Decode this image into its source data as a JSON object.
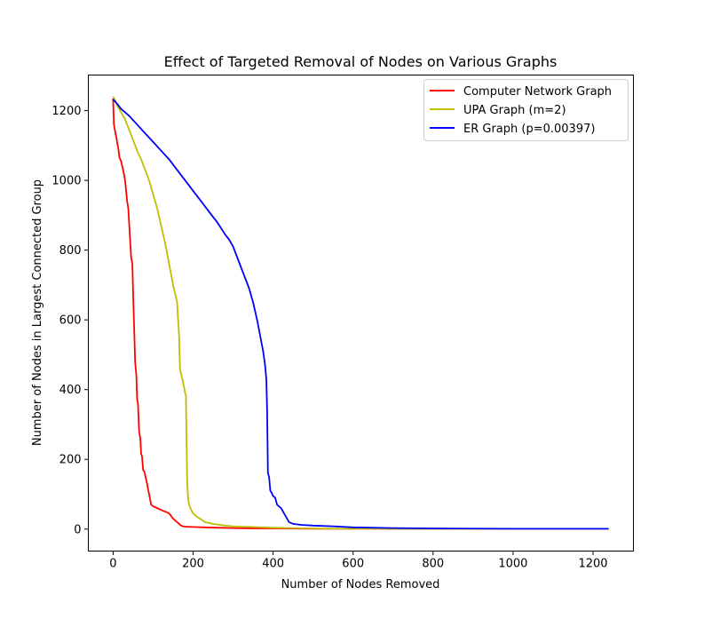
{
  "chart_data": {
    "type": "line",
    "title": "Effect of Targeted Removal of Nodes on Various Graphs",
    "xlabel": "Number of Nodes Removed",
    "ylabel": "Number of Nodes in Largest Connected Group",
    "xlim": [
      -62,
      1301
    ],
    "ylim": [
      -63,
      1302
    ],
    "xticks": [
      0,
      200,
      400,
      600,
      800,
      1000,
      1200
    ],
    "yticks": [
      0,
      200,
      400,
      600,
      800,
      1000,
      1200
    ],
    "xtick_labels": [
      "0",
      "200",
      "400",
      "600",
      "800",
      "1000",
      "1200"
    ],
    "ytick_labels": [
      "0",
      "200",
      "400",
      "600",
      "800",
      "1000",
      "1200"
    ],
    "grid": false,
    "legend_position": "top-right",
    "series": [
      {
        "name": "Computer Network Graph",
        "color": "#ff0000",
        "x": [
          0,
          2,
          5,
          8,
          10,
          13,
          16,
          20,
          25,
          30,
          35,
          38,
          40,
          43,
          45,
          48,
          50,
          53,
          55,
          56,
          58,
          60,
          62,
          65,
          68,
          70,
          72,
          75,
          78,
          80,
          85,
          88,
          90,
          95,
          100,
          105,
          110,
          120,
          130,
          140,
          150,
          160,
          170,
          175,
          180,
          200,
          230,
          260,
          300,
          350,
          400,
          500,
          600,
          800,
          1000,
          1239
        ],
        "y": [
          1235,
          1160,
          1140,
          1125,
          1110,
          1090,
          1065,
          1055,
          1030,
          1000,
          940,
          920,
          880,
          820,
          780,
          760,
          670,
          560,
          480,
          465,
          440,
          370,
          360,
          280,
          260,
          215,
          210,
          170,
          165,
          155,
          130,
          110,
          100,
          70,
          65,
          63,
          60,
          55,
          50,
          45,
          30,
          20,
          10,
          8,
          7,
          6,
          5,
          4,
          3,
          2,
          2,
          1,
          1,
          1,
          1,
          1
        ]
      },
      {
        "name": "UPA Graph (m=2)",
        "color": "#bfbf00",
        "x": [
          0,
          5,
          10,
          20,
          30,
          40,
          50,
          60,
          70,
          80,
          90,
          100,
          110,
          120,
          130,
          140,
          150,
          160,
          165,
          167,
          170,
          175,
          180,
          182,
          185,
          187,
          189,
          190,
          195,
          200,
          210,
          220,
          230,
          250,
          280,
          300,
          350,
          400,
          450,
          500,
          600,
          700,
          800,
          1000,
          1239
        ],
        "y": [
          1240,
          1230,
          1215,
          1195,
          1175,
          1145,
          1115,
          1085,
          1060,
          1030,
          1000,
          960,
          920,
          870,
          820,
          760,
          700,
          650,
          550,
          460,
          445,
          420,
          390,
          385,
          140,
          95,
          75,
          70,
          55,
          45,
          35,
          28,
          20,
          15,
          10,
          8,
          6,
          4,
          3,
          2,
          1,
          1,
          1,
          1,
          1
        ]
      },
      {
        "name": "ER Graph (p=0.00397)",
        "color": "#0000ff",
        "x": [
          0,
          10,
          20,
          40,
          60,
          80,
          100,
          120,
          140,
          160,
          180,
          200,
          220,
          240,
          260,
          280,
          290,
          300,
          310,
          320,
          330,
          340,
          350,
          360,
          365,
          370,
          375,
          380,
          383,
          385,
          387,
          390,
          393,
          396,
          400,
          405,
          410,
          420,
          430,
          440,
          450,
          470,
          500,
          550,
          600,
          700,
          800,
          1000,
          1239
        ],
        "y": [
          1232,
          1220,
          1205,
          1185,
          1160,
          1135,
          1110,
          1085,
          1060,
          1030,
          1000,
          970,
          940,
          910,
          880,
          845,
          830,
          810,
          780,
          750,
          720,
          690,
          650,
          600,
          570,
          540,
          510,
          470,
          430,
          340,
          160,
          150,
          110,
          105,
          95,
          90,
          70,
          60,
          40,
          20,
          15,
          12,
          10,
          8,
          5,
          3,
          2,
          1,
          1
        ]
      }
    ]
  }
}
